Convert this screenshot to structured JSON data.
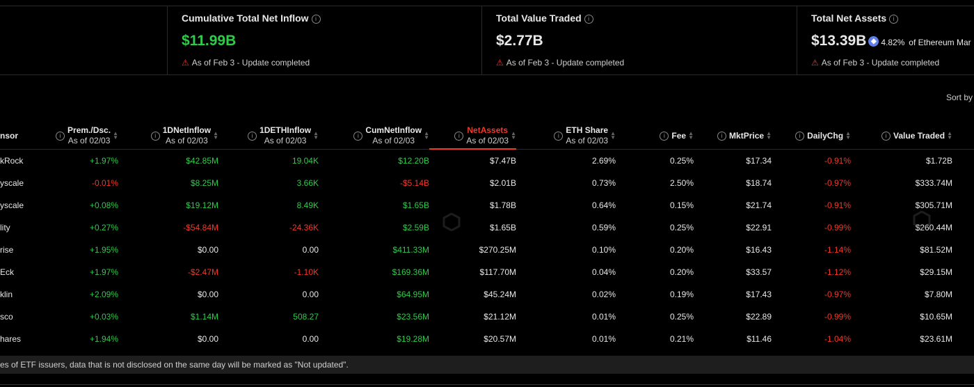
{
  "cards": [
    {
      "title": "Cumulative Total Net Inflow",
      "value": "$11.99B",
      "note": "As of Feb 3 - Update completed"
    },
    {
      "title": "Total Value Traded",
      "value": "$2.77B",
      "note": "As of Feb 3 - Update completed"
    },
    {
      "title": "Total Net Assets",
      "value": "$13.39B",
      "share": "4.82%",
      "share_label": "of Ethereum Mar",
      "note": "As of Feb 3 - Update completed"
    }
  ],
  "sort_by": "Sort by",
  "columns": [
    {
      "label": "nsor"
    },
    {
      "label": "Prem./Dsc.",
      "sub": "As of 02/03"
    },
    {
      "label": "1DNetInflow",
      "sub": "As of 02/03"
    },
    {
      "label": "1DETHInflow",
      "sub": "As of 02/03"
    },
    {
      "label": "CumNetInflow",
      "sub": "As of 02/03"
    },
    {
      "label": "NetAssets",
      "sub": "As of 02/03"
    },
    {
      "label": "ETH Share",
      "sub": "As of 02/03"
    },
    {
      "label": "Fee"
    },
    {
      "label": "MktPrice"
    },
    {
      "label": "DailyChg"
    },
    {
      "label": "Value Traded"
    }
  ],
  "rows": [
    [
      "kRock",
      "+1.97%",
      "$42.85M",
      "19.04K",
      "$12.20B",
      "$7.47B",
      "2.69%",
      "0.25%",
      "$17.34",
      "-0.91%",
      "$1.72B"
    ],
    [
      "yscale",
      "-0.01%",
      "$8.25M",
      "3.66K",
      "-$5.14B",
      "$2.01B",
      "0.73%",
      "2.50%",
      "$18.74",
      "-0.97%",
      "$333.74M"
    ],
    [
      "yscale",
      "+0.08%",
      "$19.12M",
      "8.49K",
      "$1.65B",
      "$1.78B",
      "0.64%",
      "0.15%",
      "$21.74",
      "-0.91%",
      "$305.71M"
    ],
    [
      "lity",
      "+0.27%",
      "-$54.84M",
      "-24.36K",
      "$2.59B",
      "$1.65B",
      "0.59%",
      "0.25%",
      "$22.91",
      "-0.99%",
      "$260.44M"
    ],
    [
      "rise",
      "+1.95%",
      "$0.00",
      "0.00",
      "$411.33M",
      "$270.25M",
      "0.10%",
      "0.20%",
      "$16.43",
      "-1.14%",
      "$81.52M"
    ],
    [
      "Eck",
      "+1.97%",
      "-$2.47M",
      "-1.10K",
      "$169.36M",
      "$117.70M",
      "0.04%",
      "0.20%",
      "$33.57",
      "-1.12%",
      "$29.15M"
    ],
    [
      "klin",
      "+2.09%",
      "$0.00",
      "0.00",
      "$64.95M",
      "$45.24M",
      "0.02%",
      "0.19%",
      "$17.43",
      "-0.97%",
      "$7.80M"
    ],
    [
      "sco",
      "+0.03%",
      "$1.14M",
      "508.27",
      "$23.56M",
      "$21.12M",
      "0.01%",
      "0.25%",
      "$22.89",
      "-0.99%",
      "$10.65M"
    ],
    [
      "hares",
      "+1.94%",
      "$0.00",
      "0.00",
      "$19.28M",
      "$20.57M",
      "0.01%",
      "0.21%",
      "$11.46",
      "-1.04%",
      "$23.61M"
    ]
  ],
  "footer": "es of ETF issuers, data that is not disclosed on the same day will be marked as \"Not updated\".",
  "watermark": "SoSoValue",
  "colors": {
    "positive": "#2ecc4a",
    "negative": "#f0392b",
    "active_sort": "#f0392b"
  }
}
